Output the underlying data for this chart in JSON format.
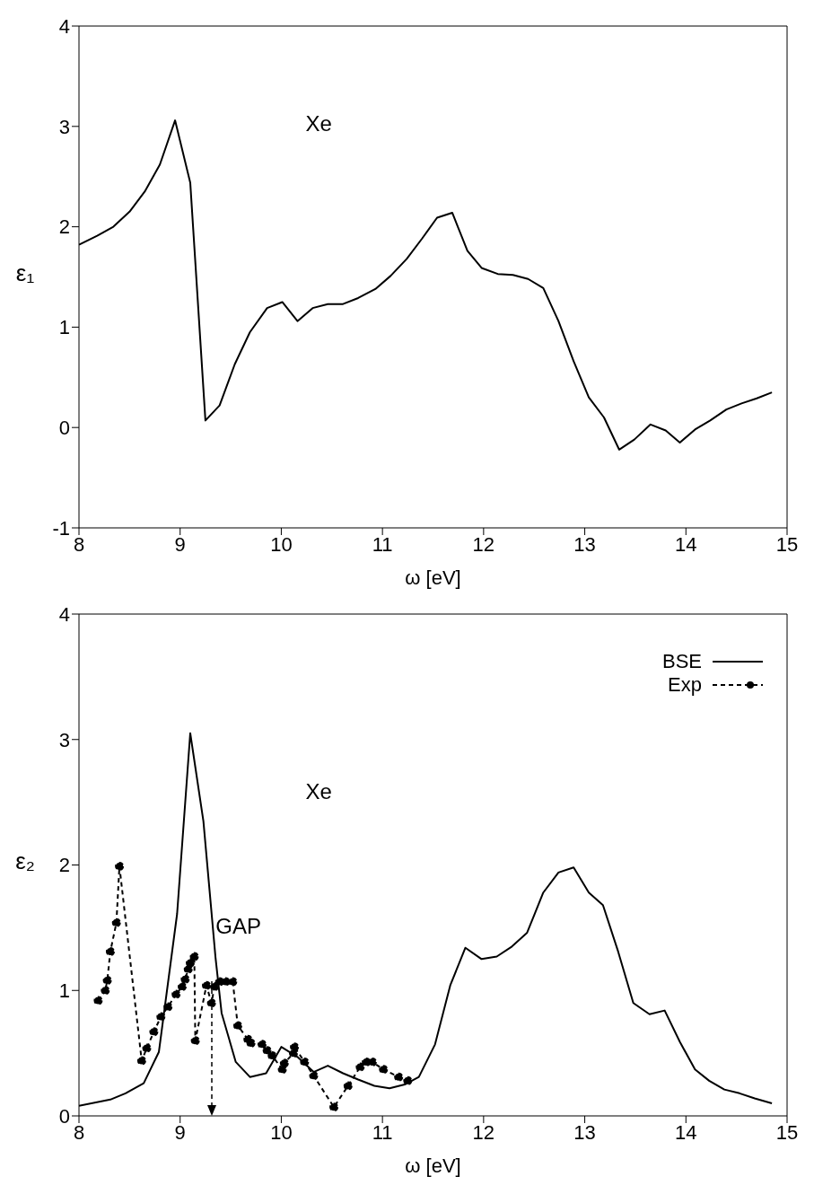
{
  "chart_data": [
    {
      "type": "line",
      "xlabel": "ω [eV]",
      "ylabel": "ε₁",
      "xlim": [
        8,
        15
      ],
      "xticks": [
        8,
        9,
        10,
        11,
        12,
        13,
        14,
        15
      ],
      "ylim": [
        -1,
        4
      ],
      "yticks": [
        -1,
        0,
        1,
        2,
        3,
        4
      ],
      "grid": false,
      "legend": false,
      "annotations": [
        "Xe"
      ],
      "series": [
        {
          "color": "#000000",
          "marker": "none",
          "line_style": "solid",
          "x": [
            8.0,
            8.18,
            8.34,
            8.5,
            8.65,
            8.8,
            8.95,
            9.1,
            9.25,
            9.39,
            9.54,
            9.69,
            9.86,
            10.01,
            10.16,
            10.31,
            10.46,
            10.61,
            10.76,
            10.93,
            11.08,
            11.24,
            11.39,
            11.54,
            11.69,
            11.84,
            11.98,
            12.14,
            12.29,
            12.44,
            12.59,
            12.74,
            12.89,
            13.04,
            13.19,
            13.34,
            13.49,
            13.65,
            13.8,
            13.94,
            14.09,
            14.24,
            14.4,
            14.55,
            14.7,
            14.85
          ],
          "values": [
            1.82,
            1.91,
            2.0,
            2.15,
            2.35,
            2.62,
            3.06,
            2.44,
            0.07,
            0.22,
            0.63,
            0.95,
            1.19,
            1.25,
            1.06,
            1.19,
            1.23,
            1.23,
            1.29,
            1.38,
            1.51,
            1.68,
            1.88,
            2.09,
            2.14,
            1.76,
            1.59,
            1.53,
            1.52,
            1.48,
            1.39,
            1.06,
            0.66,
            0.3,
            0.1,
            -0.22,
            -0.12,
            0.03,
            -0.03,
            -0.15,
            -0.02,
            0.07,
            0.18,
            0.24,
            0.29,
            0.35
          ]
        }
      ]
    },
    {
      "type": "line",
      "xlabel": "ω [eV]",
      "ylabel": "ε₂",
      "xlim": [
        8,
        15
      ],
      "xticks": [
        8,
        9,
        10,
        11,
        12,
        13,
        14,
        15
      ],
      "ylim": [
        0,
        4
      ],
      "yticks": [
        0,
        1,
        2,
        3,
        4
      ],
      "grid": false,
      "legend": "top right",
      "annotations": [
        "Xe",
        "GAP"
      ],
      "series": [
        {
          "name": "BSE",
          "color": "#000000",
          "marker": "none",
          "line_style": "solid",
          "x": [
            8.0,
            8.31,
            8.46,
            8.64,
            8.79,
            8.97,
            9.1,
            9.23,
            9.35,
            9.41,
            9.55,
            9.69,
            9.85,
            10.0,
            10.16,
            10.32,
            10.46,
            10.61,
            10.76,
            10.92,
            11.07,
            11.22,
            11.36,
            11.52,
            11.67,
            11.82,
            11.98,
            12.13,
            12.28,
            12.43,
            12.59,
            12.74,
            12.89,
            13.04,
            13.18,
            13.33,
            13.48,
            13.64,
            13.79,
            13.94,
            14.09,
            14.23,
            14.38,
            14.53,
            14.68,
            14.85
          ],
          "values": [
            0.08,
            0.13,
            0.18,
            0.26,
            0.51,
            1.61,
            3.05,
            2.35,
            1.26,
            0.82,
            0.43,
            0.31,
            0.34,
            0.55,
            0.47,
            0.35,
            0.4,
            0.34,
            0.29,
            0.24,
            0.22,
            0.25,
            0.31,
            0.57,
            1.04,
            1.34,
            1.25,
            1.27,
            1.35,
            1.46,
            1.78,
            1.94,
            1.98,
            1.78,
            1.68,
            1.31,
            0.9,
            0.81,
            0.84,
            0.59,
            0.37,
            0.28,
            0.21,
            0.18,
            0.14,
            0.1
          ]
        },
        {
          "name": "Exp",
          "color": "#000000",
          "marker": "circle",
          "line_style": "dashed",
          "x": [
            8.19,
            8.26,
            8.28,
            8.31,
            8.37,
            8.4,
            8.62,
            8.67,
            8.74,
            8.81,
            8.88,
            8.96,
            9.02,
            9.05,
            9.08,
            9.1,
            9.14,
            9.15,
            9.26,
            9.31,
            9.34,
            9.39,
            9.45,
            9.52,
            9.57,
            9.67,
            9.7,
            9.81,
            9.86,
            9.91,
            10.01,
            10.03,
            10.12,
            10.13,
            10.23,
            10.32,
            10.52,
            10.66,
            10.78,
            10.84,
            10.9,
            11.01,
            11.16,
            11.25
          ],
          "values": [
            0.92,
            1.0,
            1.08,
            1.31,
            1.54,
            1.99,
            0.44,
            0.54,
            0.67,
            0.79,
            0.87,
            0.97,
            1.03,
            1.09,
            1.17,
            1.22,
            1.27,
            0.6,
            1.04,
            0.9,
            1.03,
            1.07,
            1.07,
            1.07,
            0.72,
            0.61,
            0.58,
            0.57,
            0.52,
            0.48,
            0.37,
            0.42,
            0.5,
            0.55,
            0.43,
            0.32,
            0.07,
            0.24,
            0.39,
            0.43,
            0.43,
            0.37,
            0.31,
            0.28
          ]
        }
      ]
    }
  ]
}
